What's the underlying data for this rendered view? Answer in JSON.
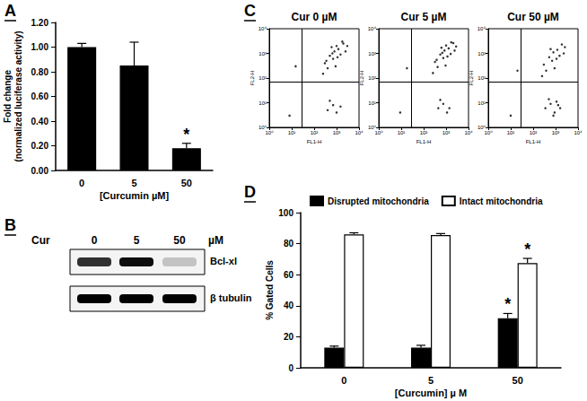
{
  "chart_data": [
    {
      "type": "bar",
      "title": "A",
      "categories": [
        "0",
        "5",
        "50"
      ],
      "values": [
        1.0,
        0.85,
        0.18
      ],
      "errors": [
        0.03,
        0.19,
        0.04
      ],
      "significance": [
        null,
        null,
        "*"
      ],
      "color": "#000000",
      "xlabel": "[Curcumin µM]",
      "ylabel": "Fold change\n(normalized luciferase activity)",
      "ylim": [
        0,
        1.2
      ],
      "yticks": [
        {
          "value": 0,
          "label": "0.00"
        },
        {
          "value": 0.2,
          "label": "0.20"
        },
        {
          "value": 0.4,
          "label": "0.40"
        },
        {
          "value": 0.6,
          "label": "0.60"
        },
        {
          "value": 0.8,
          "label": "0.80"
        },
        {
          "value": 1.0,
          "label": "1.00"
        },
        {
          "value": 1.2,
          "label": "1.20"
        }
      ],
      "grid": false
    },
    {
      "type": "blot",
      "title": "B",
      "treatment": "Cur",
      "lanes": [
        "0",
        "5",
        "50"
      ],
      "unit": "µM",
      "bands": [
        {
          "name": "Bcl-xl",
          "intensity": [
            0.8,
            0.95,
            0.2
          ]
        },
        {
          "name": "β tubulin",
          "intensity": [
            1,
            1,
            1
          ]
        }
      ]
    },
    {
      "type": "scatter",
      "title": "C",
      "log": true,
      "xlabel": "FL1-H",
      "ylabel": "FL2-H",
      "xlim": [
        1,
        10000
      ],
      "ylim": [
        1,
        10000
      ],
      "xticks": [
        {
          "value": 1,
          "label": "10⁰"
        },
        {
          "value": 10,
          "label": "10¹"
        },
        {
          "value": 100,
          "label": "10²"
        },
        {
          "value": 1000,
          "label": "10³"
        },
        {
          "value": 10000,
          "label": "10⁴"
        }
      ],
      "yticks": [
        {
          "value": 1,
          "label": "10⁰"
        },
        {
          "value": 10,
          "label": "10¹"
        },
        {
          "value": 100,
          "label": "10²"
        },
        {
          "value": 1000,
          "label": "10³"
        },
        {
          "value": 10000,
          "label": "10⁴"
        }
      ],
      "marker": "dot",
      "color": "#000000",
      "subplots": [
        {
          "title": "Cur 0 µM",
          "gate_x": 28,
          "gate_y": 70,
          "points": [
            [
              300,
              400
            ],
            [
              500,
              800
            ],
            [
              800,
              1200
            ],
            [
              1200,
              1500
            ],
            [
              2000,
              2500
            ],
            [
              700,
              600
            ],
            [
              400,
              250
            ],
            [
              1500,
              900
            ],
            [
              3000,
              2000
            ],
            [
              900,
              300
            ],
            [
              250,
              150
            ],
            [
              600,
              1800
            ],
            [
              1800,
              3000
            ],
            [
              1100,
              700
            ],
            [
              350,
              500
            ],
            [
              2500,
              1200
            ],
            [
              1000,
              2000
            ],
            [
              650,
              1000
            ],
            [
              400,
              5
            ],
            [
              700,
              8
            ],
            [
              1000,
              4
            ],
            [
              500,
              12
            ],
            [
              1500,
              7
            ],
            [
              15,
              300
            ],
            [
              8,
              3
            ]
          ]
        },
        {
          "title": "Cur 5 µM",
          "gate_x": 28,
          "gate_y": 70,
          "points": [
            [
              320,
              450
            ],
            [
              550,
              900
            ],
            [
              850,
              1300
            ],
            [
              1300,
              1600
            ],
            [
              2100,
              2600
            ],
            [
              750,
              650
            ],
            [
              420,
              280
            ],
            [
              1600,
              950
            ],
            [
              2800,
              1900
            ],
            [
              950,
              320
            ],
            [
              260,
              160
            ],
            [
              620,
              1700
            ],
            [
              1700,
              2800
            ],
            [
              1150,
              750
            ],
            [
              380,
              550
            ],
            [
              2400,
              1300
            ],
            [
              1000,
              2100
            ],
            [
              680,
              1050
            ],
            [
              450,
              6
            ],
            [
              750,
              9
            ],
            [
              1100,
              4
            ],
            [
              550,
              13
            ],
            [
              1400,
              6
            ],
            [
              18,
              250
            ],
            [
              9,
              4
            ]
          ]
        },
        {
          "title": "Cur 50 µM",
          "gate_x": 28,
          "gate_y": 70,
          "points": [
            [
              300,
              350
            ],
            [
              520,
              700
            ],
            [
              800,
              1100
            ],
            [
              1200,
              1400
            ],
            [
              1900,
              2300
            ],
            [
              700,
              500
            ],
            [
              380,
              200
            ],
            [
              1500,
              800
            ],
            [
              2600,
              1800
            ],
            [
              900,
              250
            ],
            [
              250,
              120
            ],
            [
              600,
              1500
            ],
            [
              1100,
              600
            ],
            [
              2300,
              1000
            ],
            [
              350,
              6
            ],
            [
              600,
              9
            ],
            [
              900,
              4
            ],
            [
              1300,
              8
            ],
            [
              500,
              14
            ],
            [
              800,
              3
            ],
            [
              1600,
              6
            ],
            [
              1100,
              11
            ],
            [
              20,
              200
            ],
            [
              10,
              3
            ]
          ]
        }
      ]
    },
    {
      "type": "bar",
      "title": "D",
      "categories": [
        "0",
        "5",
        "50"
      ],
      "series": [
        {
          "name": "Disrupted mitochondria",
          "color": "#000000",
          "values": [
            13,
            13,
            32
          ],
          "errors": [
            1,
            1.5,
            3
          ],
          "significance": [
            null,
            null,
            "*"
          ]
        },
        {
          "name": "Intact mitochondria",
          "color": "#ffffff",
          "values": [
            86,
            85.5,
            67.5
          ],
          "errors": [
            1,
            1,
            3
          ],
          "significance": [
            null,
            null,
            "*"
          ]
        }
      ],
      "xlabel": "[Curcumin] µ M",
      "ylabel": "% Gated Cells",
      "ylim": [
        0,
        100
      ],
      "yticks": [
        0,
        20,
        40,
        60,
        80,
        100
      ],
      "legend": "top left",
      "grid": false
    }
  ]
}
